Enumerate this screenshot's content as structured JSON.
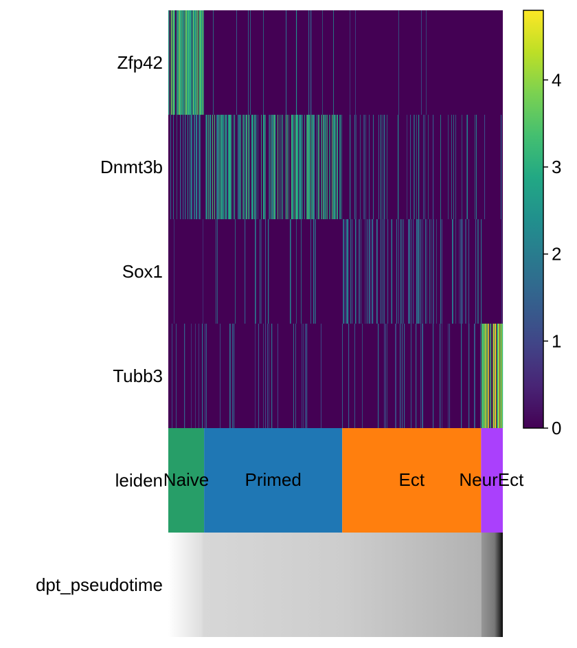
{
  "chart_data": {
    "type": "heatmap",
    "genes": [
      "Zfp42",
      "Dnmt3b",
      "Sox1",
      "Tubb3"
    ],
    "annotation_rows": [
      "leiden",
      "dpt_pseudotime"
    ],
    "colormap": "viridis",
    "colorbar": {
      "min": 0,
      "max": 4.8,
      "ticks": [
        "0",
        "1",
        "2",
        "3",
        "4"
      ]
    },
    "groups": [
      {
        "name": "Naive",
        "start": 0.0,
        "end": 0.107,
        "color": "#279e68"
      },
      {
        "name": "Primed",
        "start": 0.107,
        "end": 0.52,
        "color": "#1f77b4"
      },
      {
        "name": "Ect",
        "start": 0.52,
        "end": 0.935,
        "color": "#ff7f0e"
      },
      {
        "name": "NeurEct",
        "start": 0.935,
        "end": 1.0,
        "color": "#aa40fc"
      }
    ],
    "expression_bands": [
      {
        "gene": "Zfp42",
        "group": "Naive",
        "level": 3.3,
        "density": 0.85
      },
      {
        "gene": "Zfp42",
        "group": "Primed",
        "level": 2.0,
        "density": 0.05
      },
      {
        "gene": "Zfp42",
        "group": "Ect",
        "level": 1.5,
        "density": 0.02
      },
      {
        "gene": "Zfp42",
        "group": "NeurEct",
        "level": 0.0,
        "density": 0.0
      },
      {
        "gene": "Dnmt3b",
        "group": "Naive",
        "level": 2.0,
        "density": 0.4
      },
      {
        "gene": "Dnmt3b",
        "group": "Primed",
        "level": 2.9,
        "density": 0.6
      },
      {
        "gene": "Dnmt3b",
        "group": "Ect",
        "level": 2.0,
        "density": 0.15
      },
      {
        "gene": "Dnmt3b",
        "group": "NeurEct",
        "level": 1.5,
        "density": 0.08
      },
      {
        "gene": "Sox1",
        "group": "Naive",
        "level": 1.5,
        "density": 0.02
      },
      {
        "gene": "Sox1",
        "group": "Primed",
        "level": 1.8,
        "density": 0.1
      },
      {
        "gene": "Sox1",
        "group": "Ect",
        "level": 1.8,
        "density": 0.35
      },
      {
        "gene": "Sox1",
        "group": "NeurEct",
        "level": 1.5,
        "density": 0.05
      },
      {
        "gene": "Tubb3",
        "group": "Naive",
        "level": 1.5,
        "density": 0.15
      },
      {
        "gene": "Tubb3",
        "group": "Primed",
        "level": 1.5,
        "density": 0.1
      },
      {
        "gene": "Tubb3",
        "group": "Ect",
        "level": 1.5,
        "density": 0.15
      },
      {
        "gene": "Tubb3",
        "group": "NeurEct",
        "level": 4.2,
        "density": 0.9
      }
    ],
    "pseudotime_gray": [
      {
        "at": 0.0,
        "gray": 255
      },
      {
        "at": 0.1,
        "gray": 222
      },
      {
        "at": 0.107,
        "gray": 215
      },
      {
        "at": 0.52,
        "gray": 205
      },
      {
        "at": 0.935,
        "gray": 178
      },
      {
        "at": 0.937,
        "gray": 150
      },
      {
        "at": 0.975,
        "gray": 120
      },
      {
        "at": 1.0,
        "gray": 10
      }
    ]
  }
}
